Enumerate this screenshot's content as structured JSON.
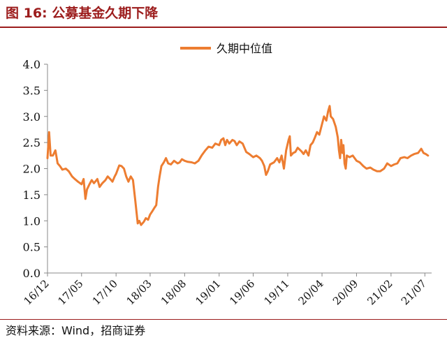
{
  "figure": {
    "title": "图 16:  公募基金久期下降",
    "source": "资料来源：Wind，招商证券"
  },
  "colors": {
    "accent": "#9c1c1c",
    "line": "#ed7d31",
    "axis": "#888888",
    "text": "#111111"
  },
  "chart_data": {
    "type": "line",
    "title": "",
    "xlabel": "",
    "ylabel": "",
    "ylim": [
      0,
      4
    ],
    "yticks": [
      "0.0",
      "0.5",
      "1.0",
      "1.5",
      "2.0",
      "2.5",
      "3.0",
      "3.5",
      "4.0"
    ],
    "xticks": [
      "16/12",
      "17/05",
      "17/10",
      "18/03",
      "18/08",
      "19/01",
      "19/06",
      "19/11",
      "20/04",
      "20/09",
      "21/02",
      "21/07"
    ],
    "grid": false,
    "legend": "top-center",
    "series": [
      {
        "name": "久期中位值",
        "color": "#ed7d31",
        "points": [
          [
            "2016-12-01",
            2.2
          ],
          [
            "2016-12-08",
            2.7
          ],
          [
            "2016-12-15",
            2.25
          ],
          [
            "2016-12-25",
            2.25
          ],
          [
            "2017-01-05",
            2.35
          ],
          [
            "2017-01-15",
            2.1
          ],
          [
            "2017-01-25",
            2.05
          ],
          [
            "2017-02-05",
            1.98
          ],
          [
            "2017-02-20",
            2.0
          ],
          [
            "2017-03-05",
            1.95
          ],
          [
            "2017-03-20",
            1.85
          ],
          [
            "2017-04-01",
            1.8
          ],
          [
            "2017-04-15",
            1.75
          ],
          [
            "2017-05-01",
            1.7
          ],
          [
            "2017-05-10",
            1.8
          ],
          [
            "2017-05-18",
            1.42
          ],
          [
            "2017-05-25",
            1.6
          ],
          [
            "2017-06-05",
            1.7
          ],
          [
            "2017-06-15",
            1.78
          ],
          [
            "2017-06-25",
            1.72
          ],
          [
            "2017-07-10",
            1.8
          ],
          [
            "2017-07-20",
            1.65
          ],
          [
            "2017-08-01",
            1.72
          ],
          [
            "2017-08-15",
            1.78
          ],
          [
            "2017-08-25",
            1.85
          ],
          [
            "2017-09-05",
            1.8
          ],
          [
            "2017-09-15",
            1.75
          ],
          [
            "2017-09-25",
            1.85
          ],
          [
            "2017-10-01",
            1.9
          ],
          [
            "2017-10-15",
            2.06
          ],
          [
            "2017-10-25",
            2.05
          ],
          [
            "2017-11-05",
            2.0
          ],
          [
            "2017-11-15",
            1.85
          ],
          [
            "2017-11-25",
            1.75
          ],
          [
            "2017-12-05",
            1.85
          ],
          [
            "2017-12-15",
            1.78
          ],
          [
            "2017-12-25",
            1.4
          ],
          [
            "2018-01-05",
            0.95
          ],
          [
            "2018-01-12",
            1.0
          ],
          [
            "2018-01-20",
            0.92
          ],
          [
            "2018-02-01",
            0.98
          ],
          [
            "2018-02-10",
            1.05
          ],
          [
            "2018-02-20",
            1.02
          ],
          [
            "2018-03-01",
            1.12
          ],
          [
            "2018-03-10",
            1.18
          ],
          [
            "2018-03-20",
            1.25
          ],
          [
            "2018-03-28",
            1.3
          ],
          [
            "2018-04-05",
            1.65
          ],
          [
            "2018-04-12",
            1.85
          ],
          [
            "2018-04-20",
            2.05
          ],
          [
            "2018-05-01",
            2.12
          ],
          [
            "2018-05-10",
            2.2
          ],
          [
            "2018-05-20",
            2.1
          ],
          [
            "2018-06-01",
            2.08
          ],
          [
            "2018-06-15",
            2.15
          ],
          [
            "2018-07-01",
            2.1
          ],
          [
            "2018-07-10",
            2.12
          ],
          [
            "2018-07-20",
            2.18
          ],
          [
            "2018-08-01",
            2.15
          ],
          [
            "2018-08-15",
            2.13
          ],
          [
            "2018-09-01",
            2.12
          ],
          [
            "2018-09-15",
            2.1
          ],
          [
            "2018-10-01",
            2.15
          ],
          [
            "2018-10-15",
            2.25
          ],
          [
            "2018-11-01",
            2.35
          ],
          [
            "2018-11-15",
            2.42
          ],
          [
            "2018-12-01",
            2.4
          ],
          [
            "2018-12-15",
            2.48
          ],
          [
            "2019-01-01",
            2.45
          ],
          [
            "2019-01-10",
            2.55
          ],
          [
            "2019-01-20",
            2.58
          ],
          [
            "2019-01-28",
            2.45
          ],
          [
            "2019-02-05",
            2.55
          ],
          [
            "2019-02-15",
            2.48
          ],
          [
            "2019-03-01",
            2.55
          ],
          [
            "2019-03-10",
            2.53
          ],
          [
            "2019-03-20",
            2.45
          ],
          [
            "2019-04-01",
            2.52
          ],
          [
            "2019-04-15",
            2.48
          ],
          [
            "2019-05-01",
            2.32
          ],
          [
            "2019-05-15",
            2.28
          ],
          [
            "2019-06-01",
            2.22
          ],
          [
            "2019-06-15",
            2.25
          ],
          [
            "2019-07-01",
            2.2
          ],
          [
            "2019-07-10",
            2.15
          ],
          [
            "2019-07-20",
            2.05
          ],
          [
            "2019-07-28",
            1.88
          ],
          [
            "2019-08-05",
            1.95
          ],
          [
            "2019-08-15",
            2.08
          ],
          [
            "2019-09-01",
            2.12
          ],
          [
            "2019-09-15",
            2.2
          ],
          [
            "2019-09-25",
            2.12
          ],
          [
            "2019-10-05",
            2.25
          ],
          [
            "2019-10-15",
            2.0
          ],
          [
            "2019-10-25",
            2.35
          ],
          [
            "2019-11-05",
            2.55
          ],
          [
            "2019-11-10",
            2.62
          ],
          [
            "2019-11-15",
            2.25
          ],
          [
            "2019-11-25",
            2.3
          ],
          [
            "2019-12-05",
            2.32
          ],
          [
            "2019-12-15",
            2.4
          ],
          [
            "2020-01-01",
            2.33
          ],
          [
            "2020-01-10",
            2.28
          ],
          [
            "2020-01-20",
            2.35
          ],
          [
            "2020-02-01",
            2.25
          ],
          [
            "2020-02-10",
            2.45
          ],
          [
            "2020-02-20",
            2.5
          ],
          [
            "2020-03-01",
            2.6
          ],
          [
            "2020-03-10",
            2.7
          ],
          [
            "2020-03-20",
            2.65
          ],
          [
            "2020-04-01",
            2.85
          ],
          [
            "2020-04-10",
            3.0
          ],
          [
            "2020-04-20",
            2.92
          ],
          [
            "2020-04-28",
            3.1
          ],
          [
            "2020-05-05",
            3.2
          ],
          [
            "2020-05-10",
            3.0
          ],
          [
            "2020-05-20",
            2.95
          ],
          [
            "2020-06-01",
            2.8
          ],
          [
            "2020-06-10",
            2.6
          ],
          [
            "2020-06-15",
            2.35
          ],
          [
            "2020-06-20",
            2.2
          ],
          [
            "2020-06-25",
            2.55
          ],
          [
            "2020-07-01",
            2.3
          ],
          [
            "2020-07-05",
            2.45
          ],
          [
            "2020-07-10",
            2.1
          ],
          [
            "2020-07-15",
            2.0
          ],
          [
            "2020-07-20",
            2.25
          ],
          [
            "2020-08-01",
            2.22
          ],
          [
            "2020-08-15",
            2.25
          ],
          [
            "2020-09-01",
            2.15
          ],
          [
            "2020-09-15",
            2.12
          ],
          [
            "2020-10-01",
            2.05
          ],
          [
            "2020-10-15",
            2.0
          ],
          [
            "2020-11-01",
            2.02
          ],
          [
            "2020-11-15",
            1.98
          ],
          [
            "2020-12-01",
            1.95
          ],
          [
            "2020-12-15",
            1.95
          ],
          [
            "2021-01-01",
            2.0
          ],
          [
            "2021-01-15",
            2.1
          ],
          [
            "2021-02-01",
            2.05
          ],
          [
            "2021-02-15",
            2.08
          ],
          [
            "2021-03-01",
            2.1
          ],
          [
            "2021-03-15",
            2.2
          ],
          [
            "2021-04-01",
            2.22
          ],
          [
            "2021-04-15",
            2.2
          ],
          [
            "2021-05-01",
            2.25
          ],
          [
            "2021-05-15",
            2.28
          ],
          [
            "2021-06-01",
            2.3
          ],
          [
            "2021-06-15",
            2.38
          ],
          [
            "2021-06-25",
            2.3
          ],
          [
            "2021-07-05",
            2.28
          ],
          [
            "2021-07-15",
            2.25
          ]
        ]
      }
    ]
  }
}
